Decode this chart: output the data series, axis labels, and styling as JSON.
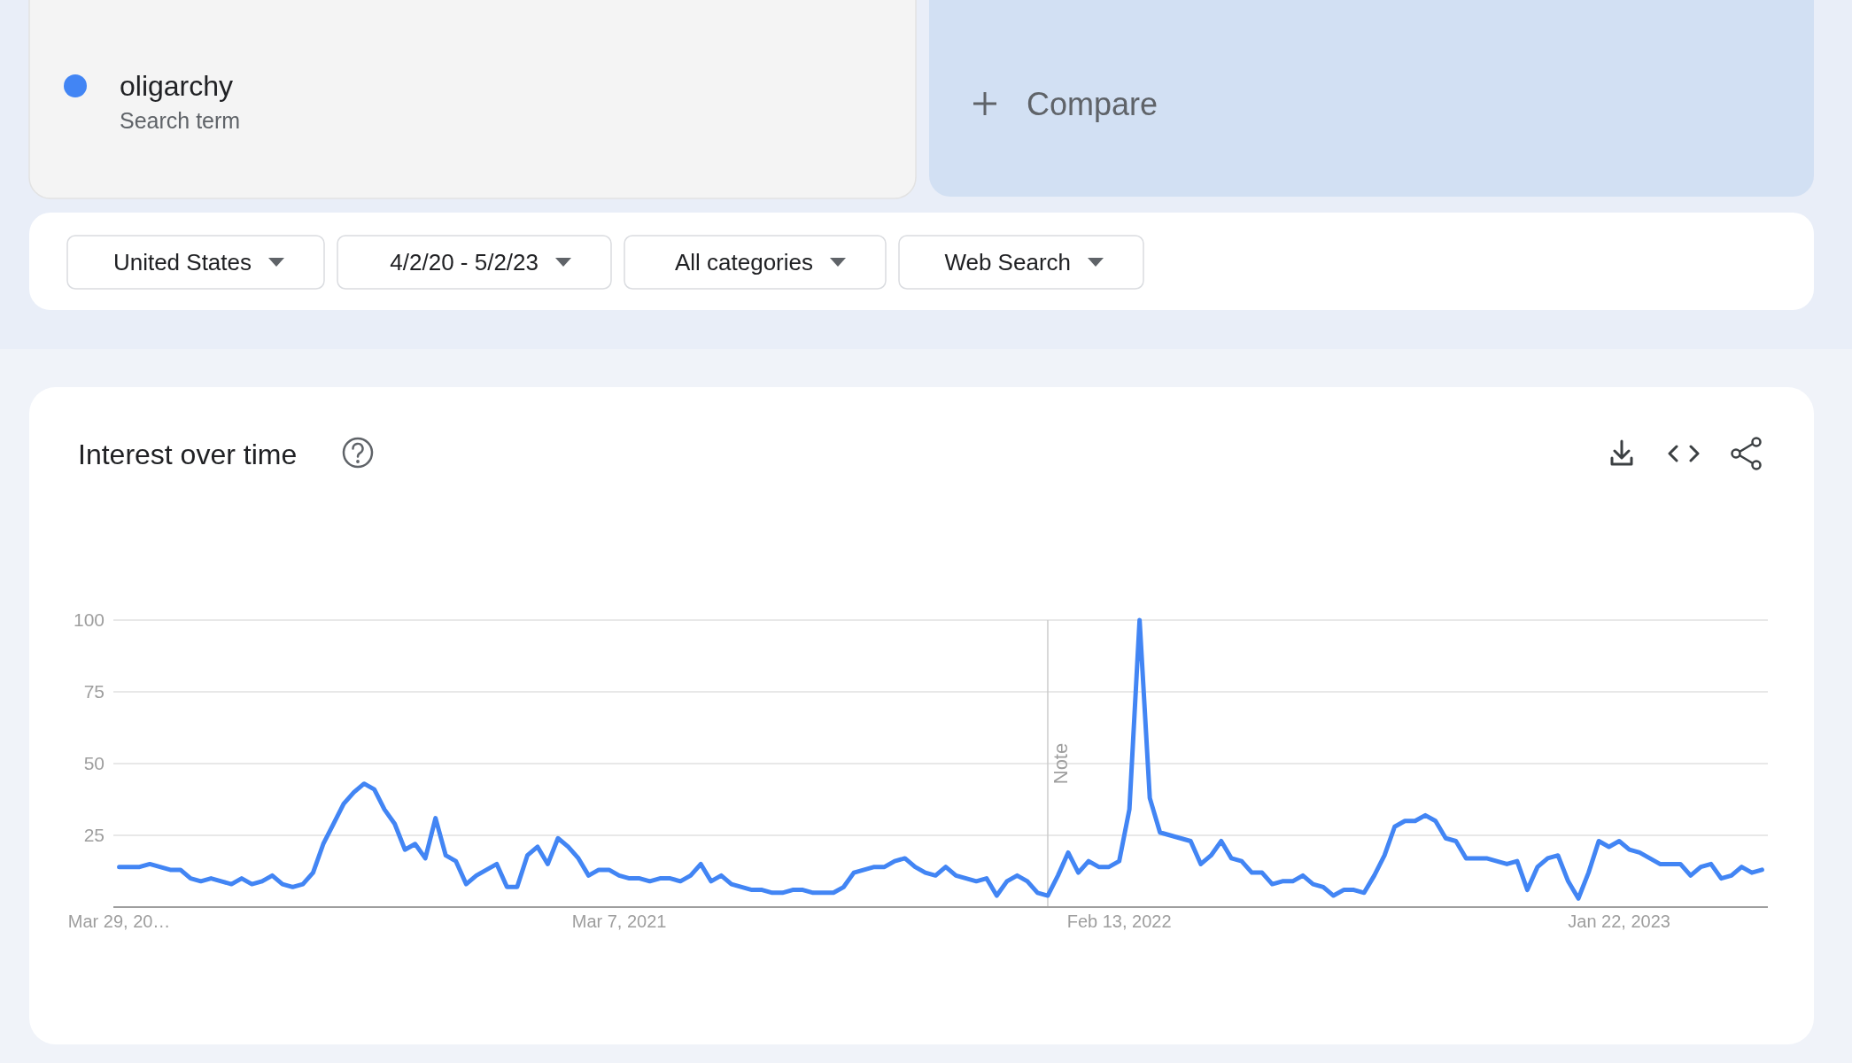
{
  "chart_data": {
    "type": "line",
    "title": "Interest over time",
    "annotations": [
      "Search term",
      "Compare",
      "United States",
      "4/2/20 - 5/2/23",
      "All categories",
      "Web Search"
    ],
    "legend": "top left",
    "grid": "y",
    "xlim": [
      "2020-03-25",
      "2023-05-04"
    ],
    "xticks": [
      {
        "value": "2020-03-29",
        "label": "Mar 29, 20…"
      },
      {
        "value": "2021-03-07",
        "label": "Mar 7, 2021"
      },
      {
        "value": "2022-02-13",
        "label": "Feb 13, 2022"
      },
      {
        "value": "2023-01-22",
        "label": "Jan 22, 2023"
      }
    ],
    "ylim": [
      0,
      100
    ],
    "yticks": [
      25,
      50,
      75,
      100
    ],
    "ref_lines": [
      {
        "axis": "x",
        "value": "2021-12-26",
        "label": "Note",
        "color": "#cccccc"
      }
    ],
    "x": [
      "2020-03-29",
      "2020-04-05",
      "2020-04-12",
      "2020-04-19",
      "2020-04-26",
      "2020-05-03",
      "2020-05-10",
      "2020-05-17",
      "2020-05-24",
      "2020-05-31",
      "2020-06-07",
      "2020-06-14",
      "2020-06-21",
      "2020-06-28",
      "2020-07-05",
      "2020-07-12",
      "2020-07-19",
      "2020-07-26",
      "2020-08-02",
      "2020-08-09",
      "2020-08-16",
      "2020-08-23",
      "2020-08-30",
      "2020-09-06",
      "2020-09-13",
      "2020-09-20",
      "2020-09-27",
      "2020-10-04",
      "2020-10-11",
      "2020-10-18",
      "2020-10-25",
      "2020-11-01",
      "2020-11-08",
      "2020-11-15",
      "2020-11-22",
      "2020-11-29",
      "2020-12-06",
      "2020-12-13",
      "2020-12-20",
      "2020-12-27",
      "2021-01-03",
      "2021-01-10",
      "2021-01-17",
      "2021-01-24",
      "2021-01-31",
      "2021-02-07",
      "2021-02-14",
      "2021-02-21",
      "2021-02-28",
      "2021-03-07",
      "2021-03-14",
      "2021-03-21",
      "2021-03-28",
      "2021-04-04",
      "2021-04-11",
      "2021-04-18",
      "2021-04-25",
      "2021-05-02",
      "2021-05-09",
      "2021-05-16",
      "2021-05-23",
      "2021-05-30",
      "2021-06-06",
      "2021-06-13",
      "2021-06-20",
      "2021-06-27",
      "2021-07-04",
      "2021-07-11",
      "2021-07-18",
      "2021-07-25",
      "2021-08-01",
      "2021-08-08",
      "2021-08-15",
      "2021-08-22",
      "2021-08-29",
      "2021-09-05",
      "2021-09-12",
      "2021-09-19",
      "2021-09-26",
      "2021-10-03",
      "2021-10-10",
      "2021-10-17",
      "2021-10-24",
      "2021-10-31",
      "2021-11-07",
      "2021-11-14",
      "2021-11-21",
      "2021-11-28",
      "2021-12-05",
      "2021-12-12",
      "2021-12-19",
      "2021-12-26",
      "2022-01-02",
      "2022-01-09",
      "2022-01-16",
      "2022-01-23",
      "2022-01-30",
      "2022-02-06",
      "2022-02-13",
      "2022-02-20",
      "2022-02-27",
      "2022-03-06",
      "2022-03-13",
      "2022-03-20",
      "2022-03-27",
      "2022-04-03",
      "2022-04-10",
      "2022-04-17",
      "2022-04-24",
      "2022-05-01",
      "2022-05-08",
      "2022-05-15",
      "2022-05-22",
      "2022-05-29",
      "2022-06-05",
      "2022-06-12",
      "2022-06-19",
      "2022-06-26",
      "2022-07-03",
      "2022-07-10",
      "2022-07-17",
      "2022-07-24",
      "2022-07-31",
      "2022-08-07",
      "2022-08-14",
      "2022-08-21",
      "2022-08-28",
      "2022-09-04",
      "2022-09-11",
      "2022-09-18",
      "2022-09-25",
      "2022-10-02",
      "2022-10-09",
      "2022-10-16",
      "2022-10-23",
      "2022-10-30",
      "2022-11-06",
      "2022-11-13",
      "2022-11-20",
      "2022-11-27",
      "2022-12-04",
      "2022-12-11",
      "2022-12-18",
      "2022-12-25",
      "2023-01-01",
      "2023-01-08",
      "2023-01-15",
      "2023-01-22",
      "2023-01-29",
      "2023-02-05",
      "2023-02-12",
      "2023-02-19",
      "2023-02-26",
      "2023-03-05",
      "2023-03-12",
      "2023-03-19",
      "2023-03-26",
      "2023-04-02",
      "2023-04-09",
      "2023-04-16",
      "2023-04-23",
      "2023-04-30"
    ],
    "series": [
      {
        "name": "oligarchy",
        "color": "#4285f4",
        "values": [
          14,
          14,
          14,
          15,
          14,
          13,
          13,
          10,
          9,
          10,
          9,
          8,
          10,
          8,
          9,
          11,
          8,
          7,
          8,
          12,
          22,
          29,
          36,
          40,
          43,
          41,
          34,
          29,
          20,
          22,
          17,
          31,
          18,
          16,
          8,
          11,
          13,
          15,
          7,
          7,
          18,
          21,
          15,
          24,
          21,
          17,
          11,
          13,
          13,
          11,
          10,
          10,
          9,
          10,
          10,
          9,
          11,
          15,
          9,
          11,
          8,
          7,
          6,
          6,
          5,
          5,
          6,
          6,
          5,
          5,
          5,
          7,
          12,
          13,
          14,
          14,
          16,
          17,
          14,
          12,
          11,
          14,
          11,
          10,
          9,
          10,
          4,
          9,
          11,
          9,
          5,
          4,
          11,
          19,
          12,
          16,
          14,
          14,
          16,
          34,
          100,
          38,
          26,
          25,
          24,
          23,
          15,
          18,
          23,
          17,
          16,
          12,
          12,
          8,
          9,
          9,
          11,
          8,
          7,
          4,
          6,
          6,
          5,
          11,
          18,
          28,
          30,
          30,
          32,
          30,
          24,
          23,
          17,
          17,
          17,
          16,
          15,
          16,
          6,
          14,
          17,
          18,
          9,
          3,
          12,
          23,
          21,
          23,
          20,
          19,
          17,
          15,
          15,
          15,
          11,
          14,
          15,
          10,
          11,
          14,
          12,
          13
        ]
      }
    ]
  }
}
